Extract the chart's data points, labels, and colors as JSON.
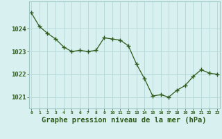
{
  "x": [
    0,
    1,
    2,
    3,
    4,
    5,
    6,
    7,
    8,
    9,
    10,
    11,
    12,
    13,
    14,
    15,
    16,
    17,
    18,
    19,
    20,
    21,
    22,
    23
  ],
  "y": [
    1024.7,
    1024.1,
    1023.8,
    1023.55,
    1023.2,
    1023.0,
    1023.05,
    1023.0,
    1023.05,
    1023.6,
    1023.55,
    1023.5,
    1023.25,
    1022.45,
    1021.8,
    1021.05,
    1021.1,
    1021.0,
    1021.3,
    1021.5,
    1021.9,
    1022.2,
    1022.05,
    1022.0
  ],
  "line_color": "#2d5a1b",
  "marker": "+",
  "marker_size": 4,
  "marker_linewidth": 1.0,
  "line_width": 0.9,
  "background_color": "#d8f0f0",
  "grid_color": "#b8dada",
  "axis_label_color": "#2d5a1b",
  "tick_label_color": "#2d5a1b",
  "xlabel": "Graphe pression niveau de la mer (hPa)",
  "xlabel_fontsize": 7.5,
  "yticks": [
    1021,
    1022,
    1023,
    1024
  ],
  "xticks": [
    0,
    1,
    2,
    3,
    4,
    5,
    6,
    7,
    8,
    9,
    10,
    11,
    12,
    13,
    14,
    15,
    16,
    17,
    18,
    19,
    20,
    21,
    22,
    23
  ],
  "ylim": [
    1020.5,
    1025.2
  ],
  "xlim": [
    -0.3,
    23.3
  ]
}
